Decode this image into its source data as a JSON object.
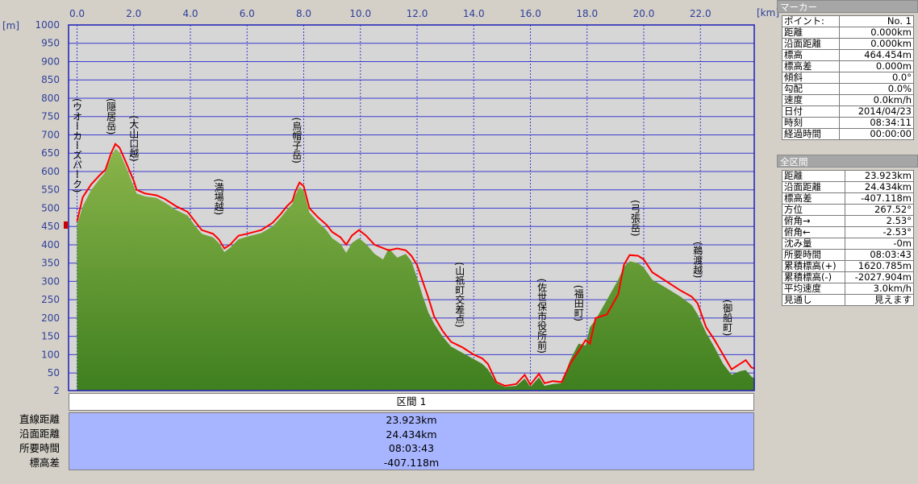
{
  "chart_data": {
    "type": "area",
    "x_unit": "[km]",
    "y_unit": "[m]",
    "xlim": [
      -0.3,
      23.9
    ],
    "ylim": [
      2,
      1000
    ],
    "x_ticks": [
      "0.0",
      "2.0",
      "4.0",
      "6.0",
      "8.0",
      "10.0",
      "12.0",
      "14.0",
      "16.0",
      "18.0",
      "20.0",
      "22.0"
    ],
    "y_ticks": [
      "1000",
      "950",
      "900",
      "850",
      "800",
      "750",
      "700",
      "650",
      "600",
      "550",
      "500",
      "450",
      "400",
      "350",
      "300",
      "250",
      "200",
      "150",
      "100",
      "50",
      "2"
    ],
    "grid": true,
    "profile_red": [
      [
        0,
        464
      ],
      [
        0.2,
        530
      ],
      [
        0.5,
        565
      ],
      [
        0.8,
        590
      ],
      [
        1.0,
        605
      ],
      [
        1.2,
        650
      ],
      [
        1.35,
        675
      ],
      [
        1.5,
        665
      ],
      [
        1.7,
        630
      ],
      [
        2.0,
        575
      ],
      [
        2.1,
        550
      ],
      [
        2.4,
        540
      ],
      [
        2.8,
        535
      ],
      [
        3.1,
        525
      ],
      [
        3.5,
        505
      ],
      [
        3.9,
        490
      ],
      [
        4.2,
        460
      ],
      [
        4.4,
        440
      ],
      [
        4.8,
        430
      ],
      [
        5.0,
        415
      ],
      [
        5.2,
        390
      ],
      [
        5.4,
        400
      ],
      [
        5.7,
        425
      ],
      [
        6.0,
        430
      ],
      [
        6.5,
        440
      ],
      [
        6.9,
        460
      ],
      [
        7.2,
        485
      ],
      [
        7.4,
        505
      ],
      [
        7.6,
        520
      ],
      [
        7.7,
        545
      ],
      [
        7.85,
        570
      ],
      [
        8.0,
        560
      ],
      [
        8.1,
        530
      ],
      [
        8.2,
        500
      ],
      [
        8.5,
        475
      ],
      [
        8.8,
        455
      ],
      [
        9.0,
        435
      ],
      [
        9.3,
        420
      ],
      [
        9.5,
        400
      ],
      [
        9.7,
        425
      ],
      [
        9.95,
        440
      ],
      [
        10.2,
        425
      ],
      [
        10.5,
        400
      ],
      [
        11.0,
        385
      ],
      [
        11.3,
        390
      ],
      [
        11.6,
        385
      ],
      [
        11.8,
        370
      ],
      [
        12.0,
        345
      ],
      [
        12.2,
        300
      ],
      [
        12.4,
        255
      ],
      [
        12.6,
        205
      ],
      [
        12.9,
        165
      ],
      [
        13.2,
        135
      ],
      [
        13.6,
        120
      ],
      [
        14.0,
        100
      ],
      [
        14.3,
        90
      ],
      [
        14.5,
        75
      ],
      [
        14.8,
        25
      ],
      [
        15.1,
        15
      ],
      [
        15.5,
        20
      ],
      [
        15.8,
        45
      ],
      [
        16.0,
        18
      ],
      [
        16.3,
        48
      ],
      [
        16.5,
        22
      ],
      [
        16.8,
        28
      ],
      [
        17.1,
        25
      ],
      [
        17.4,
        75
      ],
      [
        17.7,
        110
      ],
      [
        17.95,
        140
      ],
      [
        18.1,
        130
      ],
      [
        18.3,
        200
      ],
      [
        18.7,
        210
      ],
      [
        19.1,
        265
      ],
      [
        19.3,
        345
      ],
      [
        19.5,
        372
      ],
      [
        19.8,
        370
      ],
      [
        20.0,
        360
      ],
      [
        20.3,
        325
      ],
      [
        20.8,
        300
      ],
      [
        21.3,
        275
      ],
      [
        21.7,
        258
      ],
      [
        21.9,
        240
      ],
      [
        22.2,
        175
      ],
      [
        22.5,
        140
      ],
      [
        22.8,
        100
      ],
      [
        23.1,
        60
      ],
      [
        23.4,
        75
      ],
      [
        23.6,
        85
      ],
      [
        23.8,
        65
      ],
      [
        23.92,
        62
      ]
    ],
    "profile_green": [
      [
        0,
        455
      ],
      [
        0.2,
        505
      ],
      [
        0.5,
        550
      ],
      [
        0.8,
        580
      ],
      [
        1.0,
        598
      ],
      [
        1.2,
        640
      ],
      [
        1.35,
        662
      ],
      [
        1.5,
        652
      ],
      [
        1.7,
        618
      ],
      [
        2.0,
        560
      ],
      [
        2.1,
        540
      ],
      [
        2.4,
        532
      ],
      [
        2.8,
        528
      ],
      [
        3.1,
        515
      ],
      [
        3.5,
        495
      ],
      [
        3.9,
        480
      ],
      [
        4.2,
        448
      ],
      [
        4.4,
        430
      ],
      [
        4.8,
        420
      ],
      [
        5.0,
        405
      ],
      [
        5.2,
        380
      ],
      [
        5.4,
        392
      ],
      [
        5.7,
        415
      ],
      [
        6.0,
        422
      ],
      [
        6.5,
        432
      ],
      [
        6.9,
        450
      ],
      [
        7.2,
        475
      ],
      [
        7.4,
        495
      ],
      [
        7.6,
        512
      ],
      [
        7.7,
        535
      ],
      [
        7.85,
        558
      ],
      [
        8.0,
        548
      ],
      [
        8.1,
        518
      ],
      [
        8.2,
        488
      ],
      [
        8.5,
        462
      ],
      [
        8.8,
        440
      ],
      [
        9.0,
        418
      ],
      [
        9.3,
        402
      ],
      [
        9.5,
        378
      ],
      [
        9.7,
        405
      ],
      [
        9.95,
        418
      ],
      [
        10.2,
        402
      ],
      [
        10.5,
        375
      ],
      [
        10.8,
        360
      ],
      [
        11.0,
        390
      ],
      [
        11.3,
        365
      ],
      [
        11.6,
        375
      ],
      [
        11.8,
        355
      ],
      [
        12.0,
        310
      ],
      [
        12.2,
        260
      ],
      [
        12.4,
        215
      ],
      [
        12.6,
        185
      ],
      [
        12.9,
        150
      ],
      [
        13.2,
        122
      ],
      [
        13.6,
        105
      ],
      [
        14.0,
        88
      ],
      [
        14.3,
        75
      ],
      [
        14.5,
        60
      ],
      [
        14.8,
        22
      ],
      [
        15.1,
        12
      ],
      [
        15.5,
        15
      ],
      [
        15.8,
        35
      ],
      [
        16.0,
        12
      ],
      [
        16.3,
        38
      ],
      [
        16.5,
        15
      ],
      [
        16.8,
        20
      ],
      [
        17.1,
        22
      ],
      [
        17.4,
        85
      ],
      [
        17.7,
        130
      ],
      [
        17.95,
        125
      ],
      [
        18.1,
        175
      ],
      [
        18.3,
        195
      ],
      [
        18.7,
        250
      ],
      [
        19.1,
        305
      ],
      [
        19.3,
        340
      ],
      [
        19.5,
        355
      ],
      [
        19.8,
        350
      ],
      [
        20.0,
        338
      ],
      [
        20.3,
        305
      ],
      [
        20.8,
        282
      ],
      [
        21.3,
        258
      ],
      [
        21.7,
        235
      ],
      [
        21.9,
        210
      ],
      [
        22.2,
        160
      ],
      [
        22.5,
        120
      ],
      [
        22.8,
        75
      ],
      [
        23.1,
        45
      ],
      [
        23.4,
        55
      ],
      [
        23.6,
        58
      ],
      [
        23.8,
        40
      ],
      [
        23.92,
        35
      ]
    ],
    "annotations": [
      {
        "label": "(ウオーカーズパーク)",
        "x": 0.0
      },
      {
        "label": "(隠居岳)",
        "x": 1.2
      },
      {
        "label": "(大山口越)",
        "x": 2.0
      },
      {
        "label": "(満場越)",
        "x": 5.0
      },
      {
        "label": "(烏帽子岳)",
        "x": 7.75
      },
      {
        "label": "(山祇町交差点)",
        "x": 13.5
      },
      {
        "label": "(佐世保市役所前)",
        "x": 16.4
      },
      {
        "label": "(福田町)",
        "x": 17.7
      },
      {
        "label": "(弓張岳)",
        "x": 19.7
      },
      {
        "label": "(鵜渡越)",
        "x": 21.9
      },
      {
        "label": "(御船町)",
        "x": 22.95
      }
    ]
  },
  "marker_panel": {
    "title": "マーカー",
    "rows": [
      {
        "label": "ポイント:",
        "value": "No. 1"
      },
      {
        "label": "距離",
        "value": "0.000km"
      },
      {
        "label": "沿面距離",
        "value": "0.000km"
      },
      {
        "label": "標高",
        "value": "464.454m"
      },
      {
        "label": "標高差",
        "value": "0.000m"
      },
      {
        "label": "傾斜",
        "value": "0.0°"
      },
      {
        "label": "勾配",
        "value": "0.0%"
      },
      {
        "label": "速度",
        "value": "0.0km/h"
      },
      {
        "label": "日付",
        "value": "2014/04/23"
      },
      {
        "label": "時刻",
        "value": "08:34:11"
      },
      {
        "label": "経過時間",
        "value": "00:00:00"
      }
    ]
  },
  "total_panel": {
    "title": "全区間",
    "rows": [
      {
        "label": "距離",
        "value": "23.923km"
      },
      {
        "label": "沿面距離",
        "value": "24.434km"
      },
      {
        "label": "標高差",
        "value": "-407.118m"
      },
      {
        "label": "方位",
        "value": "267.52°"
      },
      {
        "label": "俯角→",
        "value": "2.53°"
      },
      {
        "label": "俯角←",
        "value": "-2.53°"
      },
      {
        "label": "沈み量",
        "value": "-0m"
      },
      {
        "label": "所要時間",
        "value": "08:03:43"
      },
      {
        "label": "累積標高(+)",
        "value": "1620.785m"
      },
      {
        "label": "累積標高(-)",
        "value": "-2027.904m"
      },
      {
        "label": "平均速度",
        "value": "3.0km/h"
      },
      {
        "label": "見通し",
        "value": "見えます"
      }
    ]
  },
  "segment": {
    "header": "区間 1",
    "rows": [
      {
        "label": "直線距離",
        "value": "23.923km"
      },
      {
        "label": "沿面距離",
        "value": "24.434km"
      },
      {
        "label": "所要時間",
        "value": "08:03:43"
      },
      {
        "label": "標高差",
        "value": "-407.118m"
      }
    ]
  },
  "colors": {
    "plot_bg": "#d6d6d6",
    "grid": "#3b3bd0",
    "plot_border": "#1f1fb5",
    "profile_red": "#ff0000",
    "fill_green_top": "#8ab54a",
    "fill_green_bottom": "#3f7f1f",
    "segment_bg": "#a7b4ff"
  }
}
